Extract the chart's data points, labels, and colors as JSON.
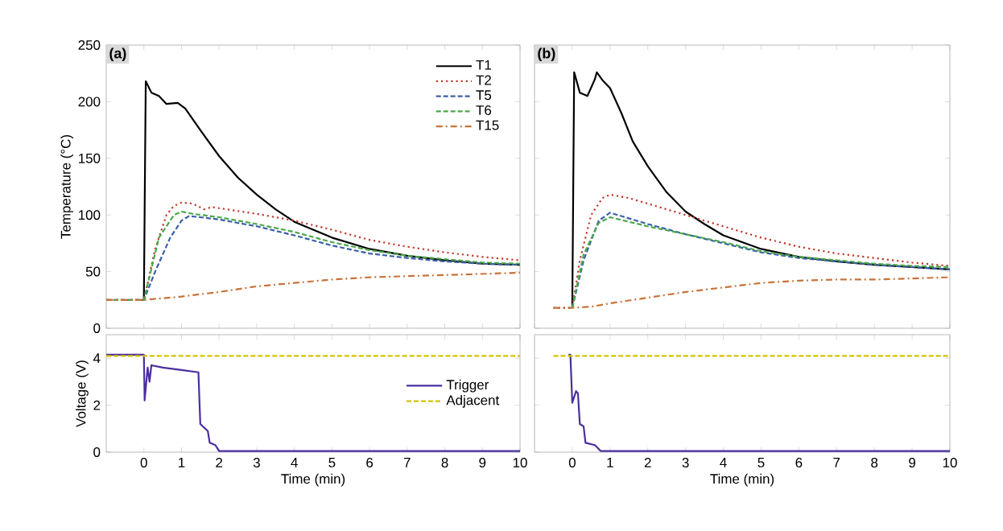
{
  "chart_data": [
    {
      "type": "line",
      "annotations": [
        "(a)"
      ],
      "ylabel": "Temperature (°C)",
      "xlim": [
        -1,
        10
      ],
      "ylim": [
        0,
        250
      ],
      "xticks": [
        {
          "value": -1,
          "label": null
        },
        {
          "value": 0,
          "label": null
        },
        {
          "value": 1,
          "label": null
        },
        {
          "value": 2,
          "label": null
        },
        {
          "value": 3,
          "label": null
        },
        {
          "value": 4,
          "label": null
        },
        {
          "value": 5,
          "label": null
        },
        {
          "value": 6,
          "label": null
        },
        {
          "value": 7,
          "label": null
        },
        {
          "value": 8,
          "label": null
        },
        {
          "value": 9,
          "label": null
        },
        {
          "value": 10,
          "label": null
        }
      ],
      "yticks": [
        0,
        50,
        100,
        150,
        200,
        250
      ],
      "tick_labels": "y",
      "legend": "top right",
      "series": [
        {
          "name": "T1",
          "color": "#000000",
          "line_style": "solid",
          "x": [
            0,
            0.05,
            0.2,
            0.4,
            0.6,
            0.9,
            1.1,
            1.5,
            2,
            2.5,
            3,
            3.5,
            4,
            5,
            6,
            7,
            8,
            9,
            10
          ],
          "values": [
            25,
            218,
            208,
            205,
            198,
            199,
            194,
            175,
            152,
            133,
            118,
            105,
            94,
            80,
            70,
            64,
            60,
            57,
            56
          ]
        },
        {
          "name": "T2",
          "color": "#c0392b",
          "line_style": "dotted",
          "x": [
            -1,
            0,
            0.3,
            0.6,
            0.8,
            1.0,
            1.3,
            1.6,
            1.8,
            2,
            3,
            4,
            5,
            6,
            7,
            8,
            9,
            10
          ],
          "values": [
            25,
            25,
            70,
            100,
            108,
            111,
            110,
            105,
            107,
            106,
            101,
            95,
            87,
            78,
            72,
            67,
            63,
            60
          ]
        },
        {
          "name": "T5",
          "color": "#3a5fa8",
          "line_style": "dashed",
          "x": [
            -1,
            0,
            0.3,
            0.7,
            1,
            1.2,
            1.5,
            2,
            3,
            4,
            5,
            6,
            7,
            8,
            9,
            10
          ],
          "values": [
            25,
            25,
            50,
            80,
            95,
            99,
            98,
            96,
            90,
            82,
            73,
            66,
            62,
            59,
            57,
            56
          ]
        },
        {
          "name": "T6",
          "color": "#4aa84a",
          "line_style": "dashed",
          "x": [
            -1,
            0,
            0.4,
            0.8,
            1.0,
            1.3,
            2,
            3,
            4,
            5,
            6,
            7,
            8,
            9,
            10
          ],
          "values": [
            25,
            25,
            80,
            100,
            103,
            101,
            98,
            92,
            85,
            76,
            69,
            64,
            61,
            58,
            57
          ]
        },
        {
          "name": "T15",
          "color": "#c8733a",
          "line_style": "dashdot",
          "x": [
            -1,
            0,
            1,
            2,
            3,
            4,
            5,
            6,
            7,
            8,
            9,
            10
          ],
          "values": [
            25,
            25,
            28,
            32,
            37,
            40,
            43,
            45,
            46,
            47,
            48,
            49
          ]
        }
      ]
    },
    {
      "type": "line",
      "annotations": [
        "(b)"
      ],
      "xlim": [
        -1,
        10
      ],
      "ylim": [
        0,
        250
      ],
      "xticks": [
        {
          "value": -1,
          "label": null
        },
        {
          "value": 0,
          "label": null
        },
        {
          "value": 1,
          "label": null
        },
        {
          "value": 2,
          "label": null
        },
        {
          "value": 3,
          "label": null
        },
        {
          "value": 4,
          "label": null
        },
        {
          "value": 5,
          "label": null
        },
        {
          "value": 6,
          "label": null
        },
        {
          "value": 7,
          "label": null
        },
        {
          "value": 8,
          "label": null
        },
        {
          "value": 9,
          "label": null
        },
        {
          "value": 10,
          "label": null
        }
      ],
      "yticks": [
        {
          "value": 0,
          "label": null
        },
        {
          "value": 50,
          "label": null
        },
        {
          "value": 100,
          "label": null
        },
        {
          "value": 150,
          "label": null
        },
        {
          "value": 200,
          "label": null
        },
        {
          "value": 250,
          "label": null
        }
      ],
      "tick_labels": false,
      "series": [
        {
          "color": "#000000",
          "line_style": "solid",
          "x": [
            0,
            0.05,
            0.2,
            0.4,
            0.6,
            0.65,
            0.8,
            1.0,
            1.3,
            1.6,
            2,
            2.5,
            3,
            3.5,
            4,
            5,
            6,
            7,
            8,
            9,
            10
          ],
          "values": [
            18,
            226,
            208,
            205,
            220,
            226,
            219,
            212,
            190,
            165,
            143,
            120,
            103,
            92,
            82,
            70,
            63,
            59,
            56,
            54,
            52
          ]
        },
        {
          "color": "#c0392b",
          "line_style": "dotted",
          "x": [
            -0.5,
            0,
            0.2,
            0.5,
            0.8,
            1.0,
            1.5,
            2,
            3,
            4,
            5,
            6,
            7,
            8,
            9,
            10
          ],
          "values": [
            18,
            18,
            60,
            100,
            115,
            118,
            115,
            110,
            100,
            90,
            80,
            72,
            66,
            62,
            58,
            55
          ]
        },
        {
          "color": "#3a5fa8",
          "line_style": "dashed",
          "x": [
            0,
            0.3,
            0.7,
            1.0,
            1.5,
            2,
            3,
            4,
            5,
            6,
            7,
            8,
            9,
            10
          ],
          "values": [
            18,
            60,
            95,
            102,
            97,
            92,
            83,
            75,
            67,
            62,
            59,
            56,
            54,
            52
          ]
        },
        {
          "color": "#4aa84a",
          "line_style": "dashed",
          "x": [
            0,
            0.3,
            0.7,
            1.0,
            1.5,
            2,
            3,
            4,
            5,
            6,
            7,
            8,
            9,
            10
          ],
          "values": [
            18,
            65,
            93,
            98,
            94,
            90,
            83,
            76,
            68,
            63,
            60,
            57,
            55,
            54
          ]
        },
        {
          "color": "#c8733a",
          "line_style": "dashdot",
          "x": [
            -0.5,
            0,
            0.5,
            1,
            2,
            3,
            4,
            5,
            6,
            7,
            8,
            9,
            10
          ],
          "values": [
            18,
            18,
            19,
            22,
            27,
            32,
            36,
            40,
            42,
            43,
            43,
            44,
            45
          ]
        }
      ]
    },
    {
      "type": "line",
      "xlabel": "Time (min)",
      "ylabel": "Voltage (V)",
      "xlim": [
        -1,
        10
      ],
      "ylim": [
        0,
        5
      ],
      "xticks": [
        0,
        1,
        2,
        3,
        4,
        5,
        6,
        7,
        8,
        9,
        10
      ],
      "yticks": [
        0,
        2,
        4
      ],
      "legend": "right",
      "series": [
        {
          "name": "Trigger",
          "color": "#4b2e9e",
          "line_style": "solid",
          "x": [
            -1,
            0,
            0.02,
            0.1,
            0.15,
            0.2,
            0.5,
            1.0,
            1.45,
            1.5,
            1.7,
            1.75,
            1.9,
            2.0,
            10
          ],
          "values": [
            4.15,
            4.15,
            2.2,
            3.6,
            3.0,
            3.7,
            3.6,
            3.5,
            3.4,
            1.2,
            0.9,
            0.4,
            0.3,
            0.05,
            0.05
          ]
        },
        {
          "name": "Adjacent",
          "color": "#d4c300",
          "line_style": "dashed",
          "x": [
            -1,
            10
          ],
          "values": [
            4.1,
            4.1
          ]
        }
      ]
    },
    {
      "type": "line",
      "xlabel": "Time (min)",
      "xlim": [
        -1,
        10
      ],
      "ylim": [
        0,
        5
      ],
      "xticks": [
        0,
        1,
        2,
        3,
        4,
        5,
        6,
        7,
        8,
        9,
        10
      ],
      "yticks": [
        {
          "value": 0,
          "label": null
        },
        {
          "value": 2,
          "label": null
        },
        {
          "value": 4,
          "label": null
        }
      ],
      "tick_labels": "x",
      "series": [
        {
          "color": "#4b2e9e",
          "line_style": "solid",
          "x": [
            -0.1,
            -0.05,
            0,
            0.1,
            0.15,
            0.2,
            0.3,
            0.35,
            0.6,
            0.75,
            10
          ],
          "values": [
            4.15,
            4.15,
            2.1,
            2.6,
            2.5,
            1.2,
            1.1,
            0.4,
            0.3,
            0.05,
            0.05
          ]
        },
        {
          "color": "#d4c300",
          "line_style": "dashed",
          "x": [
            -0.5,
            10
          ],
          "values": [
            4.1,
            4.1
          ]
        }
      ]
    }
  ]
}
